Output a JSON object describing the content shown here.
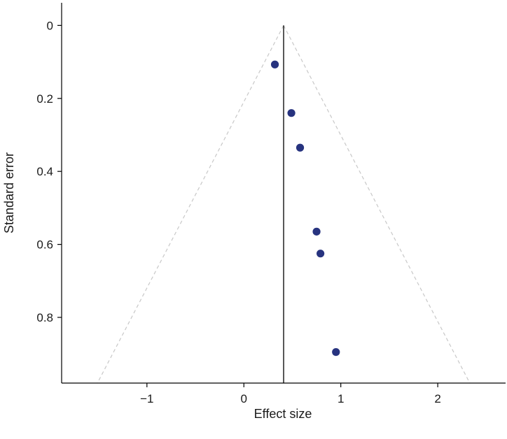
{
  "chart_data": {
    "type": "scatter",
    "title": "",
    "xlabel": "Effect size",
    "ylabel": "Standard error",
    "xlim": [
      -1.88,
      2.7
    ],
    "ylim": [
      0,
      0.98
    ],
    "y_inverted": true,
    "x_ticks": [
      -1,
      0,
      1,
      2
    ],
    "x_tick_labels": [
      "−1",
      "0",
      "1",
      "2"
    ],
    "y_ticks": [
      0,
      0.2,
      0.4,
      0.6,
      0.8
    ],
    "y_tick_labels": [
      "0",
      "0.2",
      "0.4",
      "0.6",
      "0.8"
    ],
    "pooled_effect": 0.41,
    "funnel_z": 1.96,
    "points": [
      {
        "x": 0.32,
        "y": 0.107
      },
      {
        "x": 0.49,
        "y": 0.24
      },
      {
        "x": 0.58,
        "y": 0.335
      },
      {
        "x": 0.75,
        "y": 0.565
      },
      {
        "x": 0.79,
        "y": 0.625
      },
      {
        "x": 0.95,
        "y": 0.895
      }
    ],
    "grid": false,
    "colors": {
      "points": "#27337f",
      "funnel": "#c8c8c8",
      "pooled": "#111111"
    }
  }
}
